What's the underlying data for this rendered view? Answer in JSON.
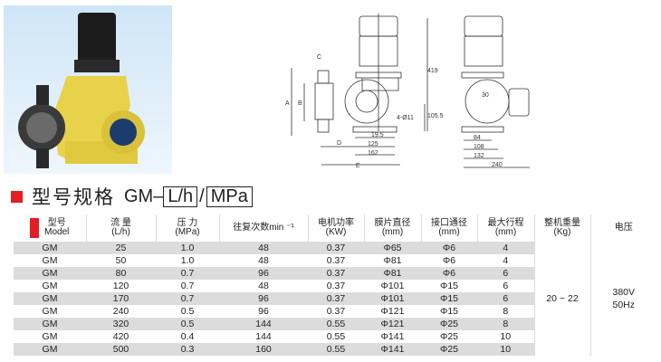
{
  "title": {
    "cn": "型号规格",
    "prefix": "GM–",
    "unit1": "L/h",
    "sep": "/",
    "unit2": "MPa"
  },
  "accent_color": "#e31e24",
  "drawing_labels": {
    "A": "A",
    "B": "B",
    "C": "C",
    "D": "D",
    "E": "E",
    "h419": "419",
    "h105": "105.5",
    "holes": "4-Ø11",
    "d19": "19.5",
    "d125": "125",
    "d162": "162",
    "d30": "30",
    "d84": "84",
    "d108": "108",
    "d132": "132",
    "d240": "240"
  },
  "table": {
    "headers": [
      {
        "l1": "型号",
        "l2": "Model"
      },
      {
        "l1": "流  量",
        "l2": "(L/h)"
      },
      {
        "l1": "压  力",
        "l2": "(MPa)"
      },
      {
        "l1": "往复次数min ⁻¹",
        "l2": ""
      },
      {
        "l1": "电机功率",
        "l2": "(KW)"
      },
      {
        "l1": "膜片直径",
        "l2": "(mm)"
      },
      {
        "l1": "接口通径",
        "l2": "(mm)"
      },
      {
        "l1": "最大行程",
        "l2": "(mm)"
      },
      {
        "l1": "整机重量",
        "l2": "(Kg)"
      },
      {
        "l1": "电压",
        "l2": ""
      }
    ],
    "rows": [
      [
        "GM",
        "25",
        "1.0",
        "48",
        "0.37",
        "Φ65",
        "Φ6",
        "4"
      ],
      [
        "GM",
        "50",
        "1.0",
        "48",
        "0.37",
        "Φ81",
        "Φ6",
        "4"
      ],
      [
        "GM",
        "80",
        "0.7",
        "96",
        "0.37",
        "Φ81",
        "Φ6",
        "6"
      ],
      [
        "GM",
        "120",
        "0.7",
        "48",
        "0.37",
        "Φ101",
        "Φ15",
        "6"
      ],
      [
        "GM",
        "170",
        "0.7",
        "96",
        "0.37",
        "Φ101",
        "Φ15",
        "6"
      ],
      [
        "GM",
        "240",
        "0.5",
        "96",
        "0.37",
        "Φ121",
        "Φ15",
        "8"
      ],
      [
        "GM",
        "320",
        "0.5",
        "144",
        "0.55",
        "Φ121",
        "Φ25",
        "8"
      ],
      [
        "GM",
        "420",
        "0.4",
        "144",
        "0.55",
        "Φ141",
        "Φ25",
        "10"
      ],
      [
        "GM",
        "500",
        "0.3",
        "160",
        "0.55",
        "Φ141",
        "Φ25",
        "10"
      ]
    ],
    "weight": "20 ~ 22",
    "voltage_l1": "380V",
    "voltage_l2": "50Hz"
  }
}
